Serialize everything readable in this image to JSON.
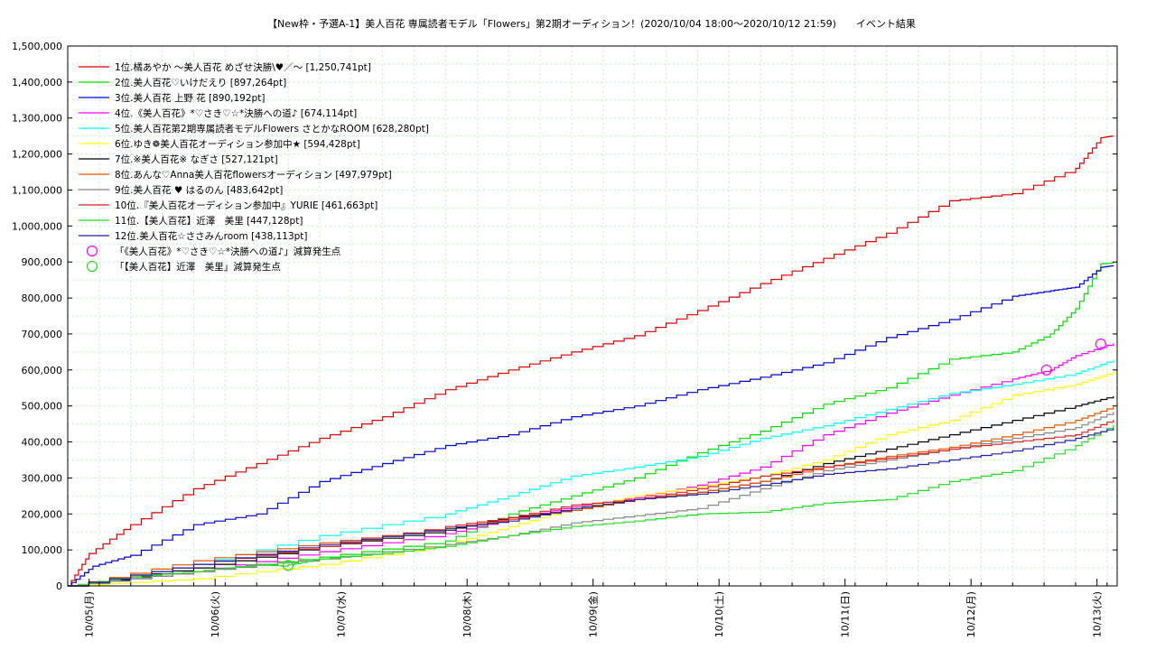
{
  "chart_data": {
    "type": "line",
    "title": "【New枠・予選A-1】美人百花 専属読者モデル「Flowers」第2期オーディション！(2020/10/04 18:00〜2020/10/12 21:59)　　イベント結果",
    "xlabel": "",
    "ylabel": "",
    "xlim": [
      0,
      8.33
    ],
    "ylim": [
      0,
      1500000
    ],
    "y_ticks": [
      0,
      100000,
      200000,
      300000,
      400000,
      500000,
      600000,
      700000,
      800000,
      900000,
      1000000,
      1100000,
      1200000,
      1300000,
      1400000,
      1500000
    ],
    "y_tick_labels": [
      "0",
      "100,000",
      "200,000",
      "300,000",
      "400,000",
      "500,000",
      "600,000",
      "700,000",
      "800,000",
      "900,000",
      "1,000,000",
      "1,100,000",
      "1,200,000",
      "1,300,000",
      "1,400,000",
      "1,500,000"
    ],
    "x_ticks": [
      0.17,
      1.17,
      2.17,
      3.17,
      4.17,
      5.17,
      6.17,
      7.17,
      8.17
    ],
    "x_tick_labels": [
      "10/05(月)",
      "10/06(火)",
      "10/07(水)",
      "10/08(木)",
      "10/09(金)",
      "10/10(土)",
      "10/11(日)",
      "10/12(月)",
      "10/13(火)"
    ],
    "grid": true,
    "legend_position": "top-left",
    "series": [
      {
        "name": "1位.橘あやか 〜美人百花 めざせ決勝\\♥／〜 [1,250,741pt]",
        "color": "#e00000",
        "x": [
          0,
          0.17,
          0.5,
          1,
          1.5,
          2,
          2.5,
          3,
          3.5,
          4,
          4.5,
          5,
          5.5,
          6,
          6.5,
          7,
          7.5,
          8,
          8.2,
          8.3
        ],
        "y": [
          0,
          90000,
          170000,
          270000,
          340000,
          410000,
          470000,
          545000,
          600000,
          650000,
          695000,
          765000,
          840000,
          910000,
          980000,
          1070000,
          1090000,
          1160000,
          1245000,
          1250741
        ]
      },
      {
        "name": "2位.美人百花♡いけだえり [897,264pt]",
        "color": "#00e000",
        "x": [
          0,
          1,
          2,
          3,
          3.5,
          4,
          4.5,
          5,
          5.5,
          6,
          6.5,
          7,
          7.5,
          7.8,
          8,
          8.2,
          8.3
        ],
        "y": [
          0,
          40000,
          80000,
          125000,
          200000,
          250000,
          300000,
          370000,
          430000,
          505000,
          550000,
          630000,
          650000,
          700000,
          770000,
          895000,
          897264
        ]
      },
      {
        "name": "3位.美人百花 上野 花 [890,192pt]",
        "color": "#0000dd",
        "x": [
          0,
          0.2,
          0.5,
          1,
          1.5,
          2,
          2.5,
          3,
          3.5,
          4,
          4.5,
          5,
          5.5,
          6,
          6.5,
          7,
          7.5,
          7.8,
          8,
          8.2,
          8.3
        ],
        "y": [
          0,
          55000,
          85000,
          170000,
          200000,
          290000,
          340000,
          390000,
          420000,
          470000,
          500000,
          545000,
          580000,
          620000,
          690000,
          740000,
          805000,
          820000,
          830000,
          885000,
          890192
        ]
      },
      {
        "name": "4位.《美人百花》*♡さき♡☆*決勝への道♪ [674,114pt]",
        "color": "#ff00ff",
        "x": [
          0,
          1,
          2,
          3,
          3.5,
          4,
          4.5,
          5,
          5.5,
          6,
          6.5,
          7,
          7.5,
          7.8,
          8,
          8.3
        ],
        "y": [
          0,
          40000,
          95000,
          145000,
          185000,
          220000,
          245000,
          280000,
          330000,
          420000,
          480000,
          530000,
          575000,
          600000,
          640000,
          674114
        ]
      },
      {
        "name": "5位.美人百花第2期専属読者モデルFlowers さとかなROOM [628,280pt]",
        "color": "#00ffff",
        "x": [
          0,
          1,
          2,
          3,
          3.5,
          4,
          4.5,
          5,
          5.5,
          6,
          6.5,
          7,
          7.5,
          8,
          8.3
        ],
        "y": [
          0,
          60000,
          140000,
          200000,
          250000,
          305000,
          330000,
          360000,
          410000,
          445000,
          490000,
          535000,
          560000,
          590000,
          628280
        ]
      },
      {
        "name": "6位.ゆき❁美人百花オーディション参加中★ [594,428pt]",
        "color": "#ffff00",
        "x": [
          0,
          1,
          2,
          3,
          3.5,
          4,
          4.5,
          5,
          5.5,
          6,
          6.5,
          7,
          7.5,
          8,
          8.3
        ],
        "y": [
          0,
          20000,
          60000,
          115000,
          165000,
          215000,
          250000,
          275000,
          305000,
          350000,
          420000,
          460000,
          530000,
          560000,
          594428
        ]
      },
      {
        "name": "7位.※美人百花※ なぎさ [527,121pt]",
        "color": "#000000",
        "x": [
          0,
          1,
          2,
          3,
          3.5,
          4,
          4.5,
          5,
          5.5,
          6,
          6.5,
          7,
          7.5,
          8,
          8.3
        ],
        "y": [
          0,
          50000,
          110000,
          155000,
          190000,
          210000,
          240000,
          260000,
          290000,
          340000,
          380000,
          420000,
          460000,
          500000,
          527121
        ]
      },
      {
        "name": "8位.あんな♡Anna美人百花flowersオーディション [497,979pt]",
        "color": "#ee5500",
        "x": [
          0,
          1,
          2,
          3,
          3.5,
          4,
          4.5,
          5,
          5.5,
          6,
          6.5,
          7,
          7.5,
          8,
          8.3
        ],
        "y": [
          0,
          70000,
          120000,
          160000,
          185000,
          210000,
          240000,
          260000,
          290000,
          330000,
          360000,
          385000,
          420000,
          460000,
          497979
        ]
      },
      {
        "name": "9位.美人百花 ♥ はるのん [483,642pt]",
        "color": "#888888",
        "x": [
          0,
          1,
          2,
          3,
          3.5,
          4,
          4.5,
          5,
          5.5,
          6,
          6.5,
          7,
          7.5,
          8,
          8.3
        ],
        "y": [
          0,
          40000,
          75000,
          115000,
          140000,
          175000,
          195000,
          215000,
          270000,
          320000,
          350000,
          380000,
          410000,
          440000,
          483642
        ]
      },
      {
        "name": "10位.『美人百花オーディション参加中』YURIE [461,663pt]",
        "color": "#dd2222",
        "x": [
          0,
          1,
          2,
          3,
          3.5,
          4,
          4.5,
          5,
          5.5,
          6,
          6.5,
          7,
          7.5,
          8,
          8.3
        ],
        "y": [
          0,
          60000,
          110000,
          165000,
          190000,
          225000,
          240000,
          270000,
          305000,
          330000,
          355000,
          380000,
          400000,
          420000,
          461663
        ]
      },
      {
        "name": "11位.【美人百花】近澤　美里 [447,128pt]",
        "color": "#22dd22",
        "x": [
          0,
          0.5,
          1,
          1.5,
          1.7,
          2,
          2.5,
          3,
          3.5,
          4,
          4.5,
          5,
          5.5,
          6,
          6.5,
          7,
          7.5,
          8,
          8.3
        ],
        "y": [
          0,
          25000,
          40000,
          60000,
          55000,
          75000,
          90000,
          110000,
          140000,
          165000,
          180000,
          200000,
          205000,
          230000,
          240000,
          290000,
          320000,
          390000,
          447128
        ]
      },
      {
        "name": "12位.美人百花☆ささみんroom [438,113pt]",
        "color": "#2222aa",
        "x": [
          0,
          1,
          2,
          3,
          3.5,
          4,
          4.5,
          5,
          5.5,
          6,
          6.5,
          7,
          7.5,
          8,
          8.3
        ],
        "y": [
          0,
          60000,
          115000,
          160000,
          180000,
          215000,
          240000,
          255000,
          280000,
          310000,
          325000,
          350000,
          375000,
          410000,
          438113
        ]
      }
    ],
    "markers": [
      {
        "name": "「《美人百花》*♡さき♡☆*決勝への道♪」減算発生点",
        "color": "#ff00ff",
        "points": [
          {
            "x": 7.77,
            "y": 600000
          },
          {
            "x": 8.2,
            "y": 672000
          }
        ]
      },
      {
        "name": "「【美人百花】近澤　美里」減算発生点",
        "color": "#22dd22",
        "points": [
          {
            "x": 1.75,
            "y": 57000
          }
        ]
      }
    ]
  }
}
